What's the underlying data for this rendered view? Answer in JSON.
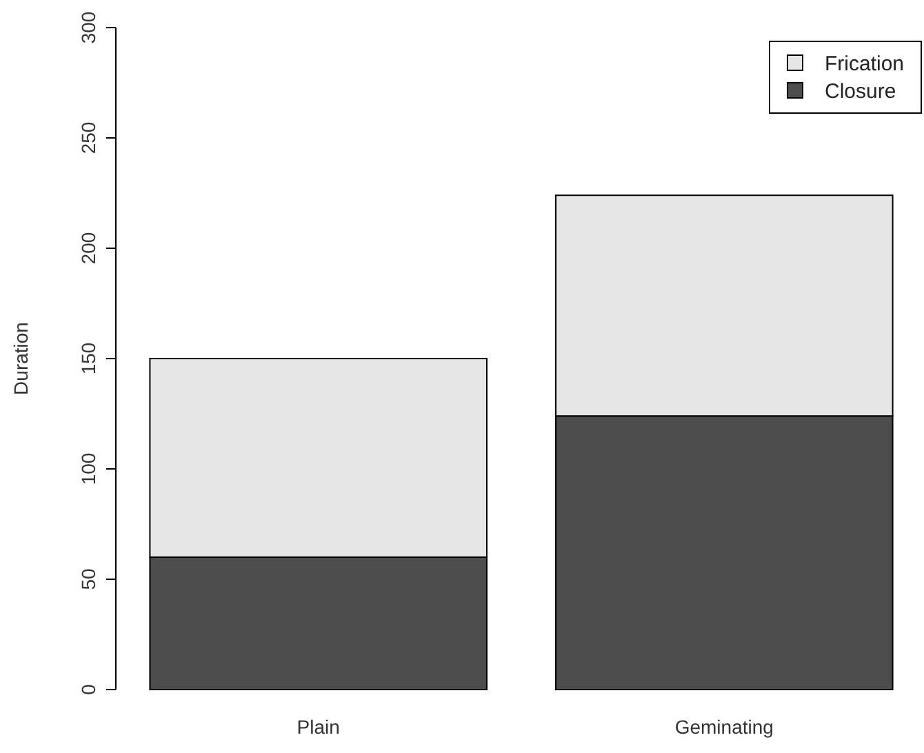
{
  "chart_data": {
    "type": "bar",
    "stacked": true,
    "ylabel": "Duration",
    "categories": [
      "Plain",
      "Geminating"
    ],
    "series": [
      {
        "name": "Closure",
        "color": "#4d4d4d",
        "values": [
          60,
          124
        ]
      },
      {
        "name": "Frication",
        "color": "#e6e6e6",
        "values": [
          90,
          100
        ]
      }
    ],
    "ylim": [
      0,
      300
    ],
    "yticks": [
      0,
      50,
      100,
      150,
      200,
      250,
      300
    ],
    "legend": "top right"
  }
}
